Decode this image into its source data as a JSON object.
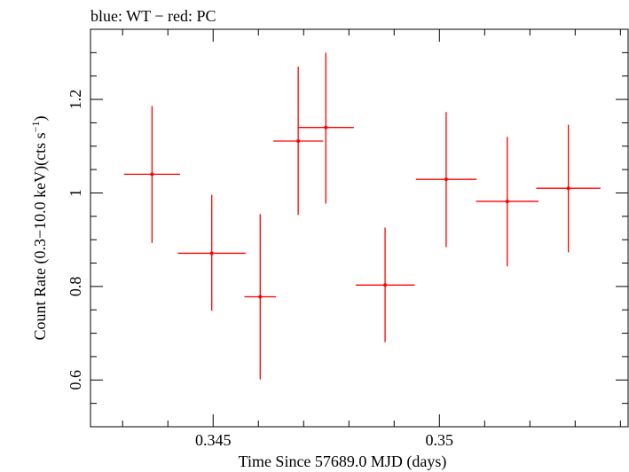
{
  "chart_data": {
    "type": "scatter",
    "title": "blue: WT − red: PC",
    "xlabel": "Time Since 57689.0 MJD (days)",
    "ylabel_main": "Count Rate (0.3−10.0 keV)(cts s",
    "ylabel_sup": "−1",
    "ylabel_end": ")",
    "xlim": [
      0.34229,
      0.35417
    ],
    "ylim": [
      0.5,
      1.35
    ],
    "x_major_ticks": [
      0.345,
      0.35
    ],
    "x_tick_labels": [
      "0.345",
      "0.35"
    ],
    "x_minor_step": 0.001,
    "y_major_ticks": [
      0.6,
      0.8,
      1.0,
      1.2
    ],
    "y_tick_labels": [
      "0.6",
      "0.8",
      "1",
      "1.2"
    ],
    "y_minor_step": 0.05,
    "grid": false,
    "series": [
      {
        "color": "#ff0000",
        "points": [
          {
            "x": 0.34365,
            "y": 1.04,
            "xerr": 0.00062,
            "yerr_lo": 0.147,
            "yerr_hi": 0.146
          },
          {
            "x": 0.34497,
            "y": 0.871,
            "xerr": 0.00075,
            "yerr_lo": 0.123,
            "yerr_hi": 0.125
          },
          {
            "x": 0.34604,
            "y": 0.778,
            "xerr": 0.00035,
            "yerr_lo": 0.177,
            "yerr_hi": 0.177
          },
          {
            "x": 0.34688,
            "y": 1.111,
            "xerr": 0.00055,
            "yerr_lo": 0.158,
            "yerr_hi": 0.159
          },
          {
            "x": 0.34749,
            "y": 1.14,
            "xerr": 0.00062,
            "yerr_lo": 0.163,
            "yerr_hi": 0.16
          },
          {
            "x": 0.3488,
            "y": 0.803,
            "xerr": 0.00065,
            "yerr_lo": 0.122,
            "yerr_hi": 0.123
          },
          {
            "x": 0.35015,
            "y": 1.029,
            "xerr": 0.00067,
            "yerr_lo": 0.145,
            "yerr_hi": 0.144
          },
          {
            "x": 0.3515,
            "y": 0.982,
            "xerr": 0.00069,
            "yerr_lo": 0.139,
            "yerr_hi": 0.138
          },
          {
            "x": 0.35285,
            "y": 1.01,
            "xerr": 0.00071,
            "yerr_lo": 0.137,
            "yerr_hi": 0.136
          }
        ]
      }
    ]
  }
}
